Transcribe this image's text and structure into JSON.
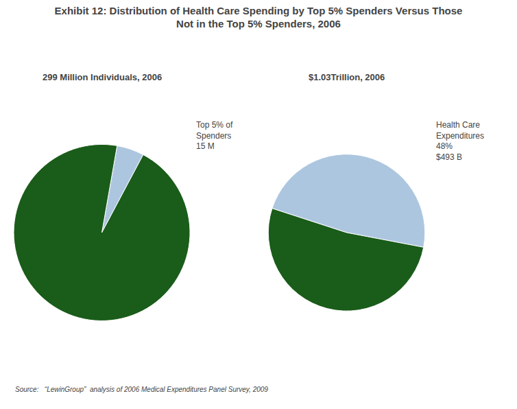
{
  "title": "Exhibit 12: Distribution of Health Care Spending by Top 5% Spenders Versus Those\nNot in the Top 5% Spenders, 2006",
  "source": "Source:   “LewinGroup”  analysis of 2006 Medical Expenditures Panel Survey, 2009",
  "chart_data": [
    {
      "type": "pie",
      "title": "299 Million Individuals, 2006",
      "values": [
        5,
        95
      ],
      "colors": [
        "#adc6e0",
        "#1a5c1a"
      ],
      "annotations": [
        "Top 5% of",
        "Spenders",
        "15 M"
      ]
    },
    {
      "type": "pie",
      "title": "$1.03Trillion, 2006",
      "values": [
        48,
        52
      ],
      "colors": [
        "#adc6e0",
        "#1a5c1a"
      ],
      "annotations": [
        "Health Care",
        "Expenditures",
        "48%",
        "$493 B"
      ]
    }
  ]
}
